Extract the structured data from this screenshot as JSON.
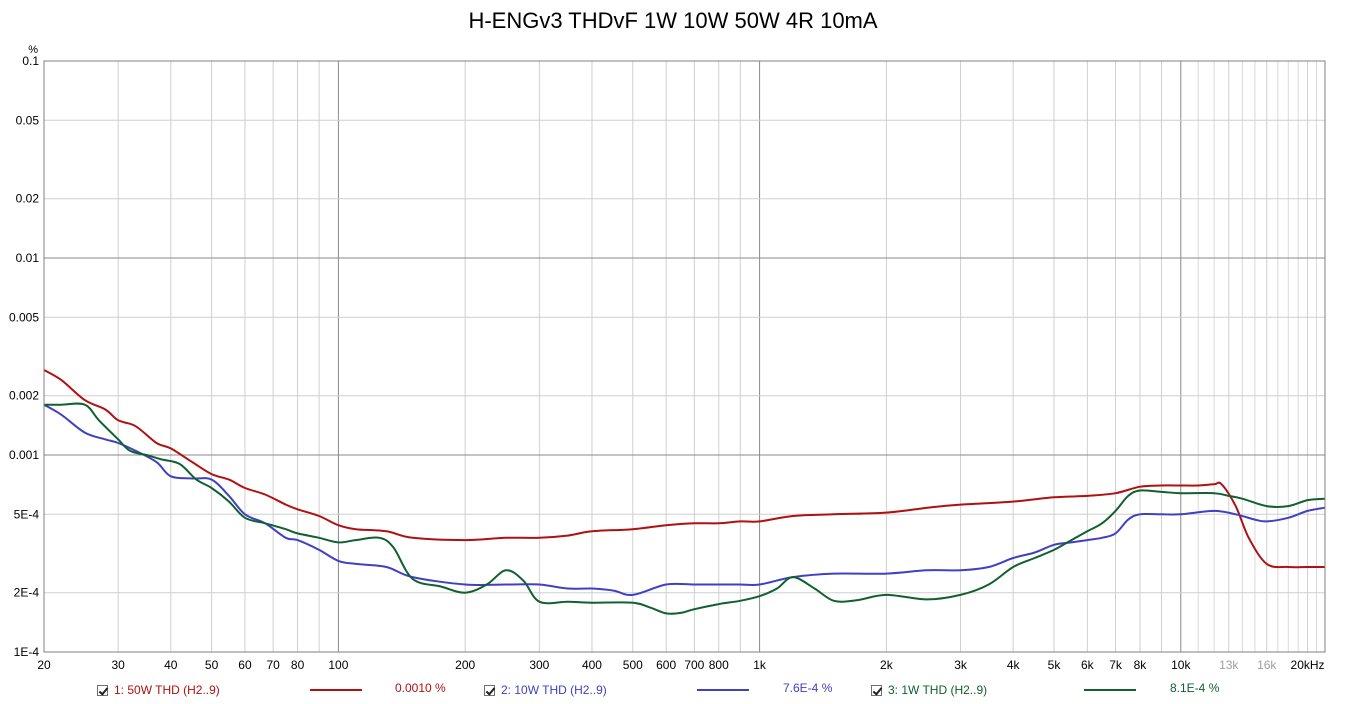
{
  "chart_data": {
    "type": "line",
    "title": "H-ENGv3 THDvF 1W 10W 50W 4R 10mA",
    "ylabel": "%",
    "x_scale": "log",
    "y_scale": "log",
    "xlim": [
      20,
      22000
    ],
    "ylim": [
      0.0001,
      0.1
    ],
    "grid": true,
    "x_ticks": [
      {
        "v": 20,
        "label": "20",
        "major": true
      },
      {
        "v": 30,
        "label": "30"
      },
      {
        "v": 40,
        "label": "40"
      },
      {
        "v": 50,
        "label": "50"
      },
      {
        "v": 60,
        "label": "60"
      },
      {
        "v": 70,
        "label": "70"
      },
      {
        "v": 80,
        "label": "80"
      },
      {
        "v": 90,
        "label": ""
      },
      {
        "v": 100,
        "label": "100",
        "major": true
      },
      {
        "v": 200,
        "label": "200"
      },
      {
        "v": 300,
        "label": "300"
      },
      {
        "v": 400,
        "label": "400"
      },
      {
        "v": 500,
        "label": "500"
      },
      {
        "v": 600,
        "label": "600"
      },
      {
        "v": 700,
        "label": "700"
      },
      {
        "v": 800,
        "label": "800"
      },
      {
        "v": 900,
        "label": ""
      },
      {
        "v": 1000,
        "label": "1k",
        "major": true
      },
      {
        "v": 2000,
        "label": "2k"
      },
      {
        "v": 3000,
        "label": "3k"
      },
      {
        "v": 4000,
        "label": "4k"
      },
      {
        "v": 5000,
        "label": "5k"
      },
      {
        "v": 6000,
        "label": "6k"
      },
      {
        "v": 7000,
        "label": "7k"
      },
      {
        "v": 8000,
        "label": "8k"
      },
      {
        "v": 9000,
        "label": ""
      },
      {
        "v": 10000,
        "label": "10k",
        "major": true
      },
      {
        "v": 13000,
        "label": "13k",
        "grey": true
      },
      {
        "v": 16000,
        "label": "16k",
        "grey": true
      },
      {
        "v": 20000,
        "label": "20kHz"
      }
    ],
    "x_minor_grid": [
      11000,
      12000,
      14000,
      15000,
      17000,
      18000,
      19000,
      21000
    ],
    "y_ticks": [
      {
        "v": 0.1,
        "label": "0.1",
        "major": true
      },
      {
        "v": 0.05,
        "label": "0.05"
      },
      {
        "v": 0.02,
        "label": "0.02"
      },
      {
        "v": 0.01,
        "label": "0.01",
        "major": true
      },
      {
        "v": 0.005,
        "label": "0.005"
      },
      {
        "v": 0.002,
        "label": "0.002"
      },
      {
        "v": 0.001,
        "label": "0.001",
        "major": true
      },
      {
        "v": 0.0005,
        "label": "5E-4"
      },
      {
        "v": 0.0002,
        "label": "2E-4"
      },
      {
        "v": 0.0001,
        "label": "1E-4",
        "major": true
      }
    ],
    "series": [
      {
        "name": "1: 50W THD (H2..9)",
        "value_label": "0.0010 %",
        "color": "#b01010",
        "x": [
          20,
          22,
          25,
          28,
          30,
          33,
          37,
          40,
          45,
          50,
          55,
          60,
          67,
          75,
          80,
          90,
          100,
          110,
          130,
          150,
          200,
          250,
          300,
          350,
          400,
          500,
          600,
          700,
          800,
          900,
          1000,
          1200,
          1500,
          2000,
          2500,
          3000,
          4000,
          5000,
          6000,
          7000,
          8000,
          9000,
          10000,
          11000,
          12000,
          12500,
          13500,
          14500,
          16000,
          18000,
          20000,
          22000
        ],
        "y": [
          0.0027,
          0.0024,
          0.0019,
          0.0017,
          0.0015,
          0.0014,
          0.00115,
          0.00108,
          0.00092,
          0.0008,
          0.00075,
          0.00068,
          0.00063,
          0.00056,
          0.00053,
          0.00049,
          0.00044,
          0.00042,
          0.00041,
          0.00038,
          0.00037,
          0.00038,
          0.00038,
          0.00039,
          0.00041,
          0.00042,
          0.00044,
          0.00045,
          0.00045,
          0.00046,
          0.00046,
          0.00049,
          0.0005,
          0.00051,
          0.00054,
          0.00056,
          0.00058,
          0.00061,
          0.00062,
          0.00064,
          0.00069,
          0.0007,
          0.0007,
          0.0007,
          0.00071,
          0.00071,
          0.00055,
          0.00038,
          0.00028,
          0.00027,
          0.00027,
          0.00027
        ]
      },
      {
        "name": "2: 10W THD (H2..9)",
        "value_label": "7.6E-4 %",
        "color": "#4040c0",
        "x": [
          20,
          22,
          25,
          28,
          30,
          33,
          37,
          40,
          45,
          50,
          55,
          60,
          67,
          75,
          80,
          90,
          100,
          110,
          130,
          150,
          200,
          250,
          300,
          350,
          400,
          450,
          500,
          600,
          700,
          800,
          900,
          1000,
          1200,
          1500,
          2000,
          2500,
          3000,
          3500,
          4000,
          4500,
          5000,
          5500,
          6000,
          6500,
          7000,
          7500,
          8000,
          9000,
          10000,
          12000,
          13500,
          15000,
          16000,
          18000,
          20000,
          22000
        ],
        "y": [
          0.0018,
          0.0016,
          0.0013,
          0.0012,
          0.00115,
          0.00105,
          0.00092,
          0.00078,
          0.00076,
          0.00075,
          0.00062,
          0.0005,
          0.00045,
          0.00038,
          0.00037,
          0.00033,
          0.00029,
          0.00028,
          0.00027,
          0.00024,
          0.00022,
          0.00022,
          0.00022,
          0.00021,
          0.00021,
          0.000205,
          0.000195,
          0.00022,
          0.00022,
          0.00022,
          0.00022,
          0.00022,
          0.00024,
          0.00025,
          0.00025,
          0.00026,
          0.00026,
          0.00027,
          0.0003,
          0.00032,
          0.00035,
          0.00036,
          0.00037,
          0.00038,
          0.0004,
          0.00047,
          0.0005,
          0.0005,
          0.0005,
          0.00052,
          0.0005,
          0.00047,
          0.00046,
          0.00048,
          0.00052,
          0.00054
        ]
      },
      {
        "name": "3: 1W THD (H2..9)",
        "value_label": "8.1E-4 %",
        "color": "#106030",
        "x": [
          20,
          22,
          25,
          27,
          30,
          32,
          35,
          38,
          42,
          46,
          50,
          55,
          60,
          67,
          75,
          80,
          90,
          100,
          110,
          125,
          135,
          150,
          175,
          200,
          225,
          250,
          275,
          300,
          350,
          400,
          500,
          550,
          600,
          650,
          700,
          800,
          900,
          1000,
          1100,
          1200,
          1350,
          1500,
          1700,
          2000,
          2500,
          3000,
          3500,
          4000,
          4500,
          5000,
          5500,
          6000,
          6500,
          7000,
          7500,
          8000,
          9000,
          10000,
          12000,
          13000,
          14000,
          16000,
          18000,
          20000,
          22000
        ],
        "y": [
          0.0018,
          0.0018,
          0.0018,
          0.0015,
          0.0012,
          0.00105,
          0.001,
          0.00095,
          0.0009,
          0.00075,
          0.00068,
          0.00058,
          0.00048,
          0.00045,
          0.00042,
          0.0004,
          0.00038,
          0.00036,
          0.00037,
          0.00038,
          0.00034,
          0.000235,
          0.000215,
          0.0002,
          0.00022,
          0.00026,
          0.00023,
          0.00018,
          0.00018,
          0.000178,
          0.000178,
          0.000168,
          0.000157,
          0.000158,
          0.000165,
          0.000175,
          0.000182,
          0.000192,
          0.00021,
          0.00024,
          0.00021,
          0.000182,
          0.000183,
          0.000195,
          0.000185,
          0.000195,
          0.00022,
          0.00027,
          0.0003,
          0.00033,
          0.00037,
          0.00041,
          0.00045,
          0.00052,
          0.00062,
          0.00066,
          0.00065,
          0.00064,
          0.00064,
          0.00062,
          0.0006,
          0.00055,
          0.00055,
          0.00059,
          0.0006
        ]
      }
    ]
  }
}
